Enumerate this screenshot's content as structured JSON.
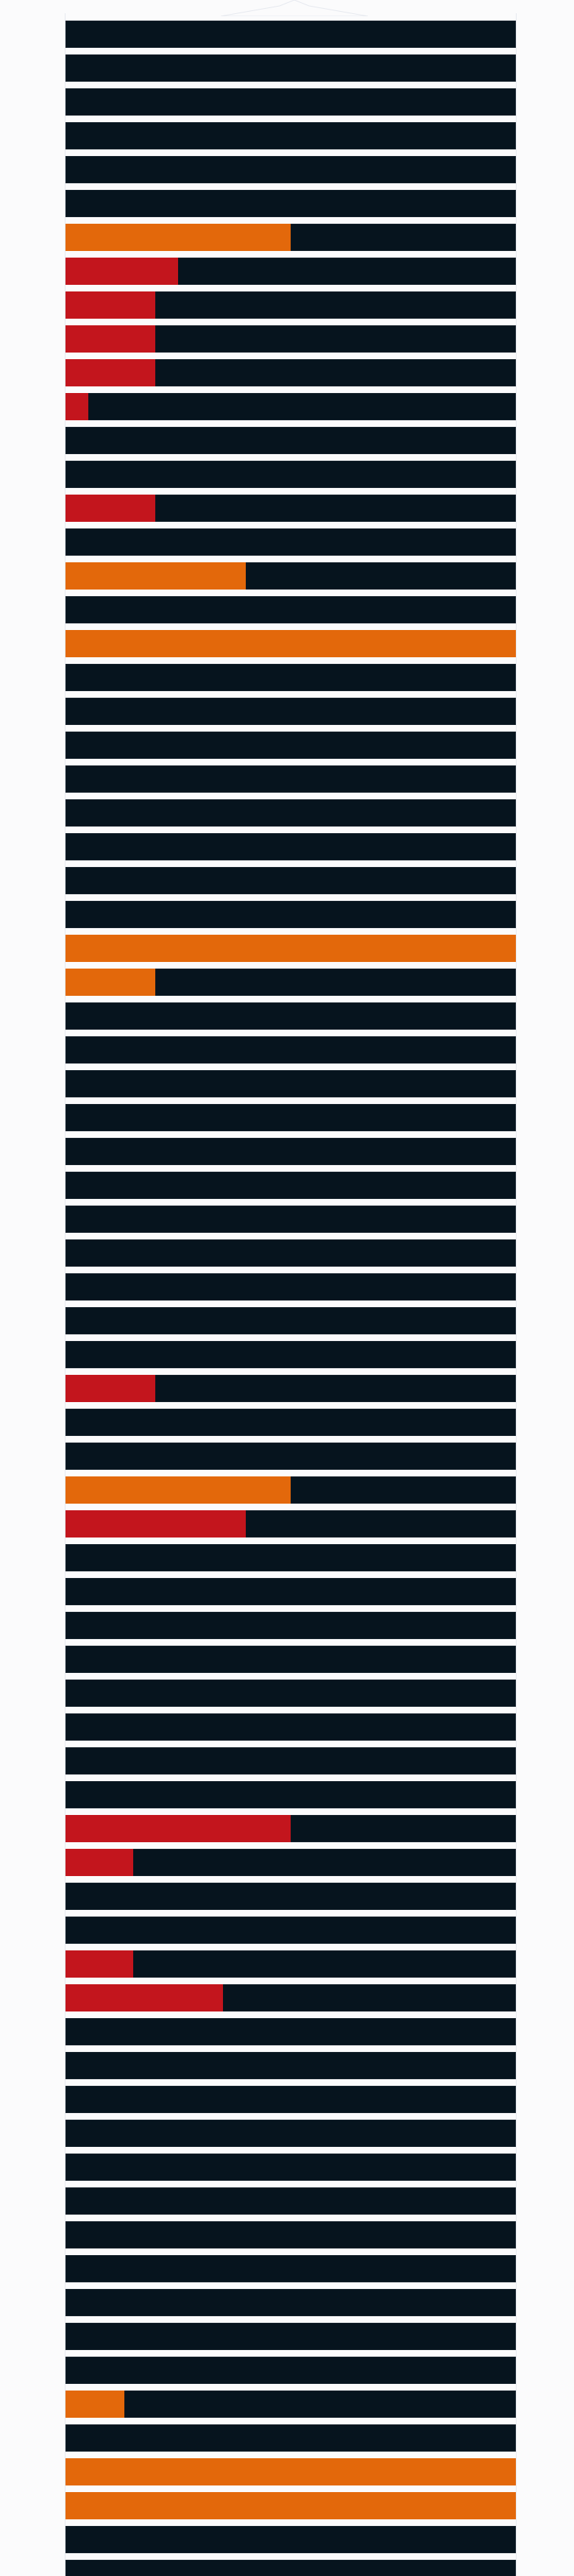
{
  "colors": {
    "background": "#fbfbfc",
    "bar_track": "#06141e",
    "orange": "#e3680b",
    "red": "#c3151d"
  },
  "icons": {
    "top_notch": "triangle-notch-icon"
  },
  "rows": [
    {
      "fill": 0,
      "color": "none"
    },
    {
      "fill": 0,
      "color": "none"
    },
    {
      "fill": 0,
      "color": "none"
    },
    {
      "fill": 0,
      "color": "none"
    },
    {
      "fill": 0,
      "color": "none"
    },
    {
      "fill": 0,
      "color": "none"
    },
    {
      "fill": 0.5,
      "color": "orange"
    },
    {
      "fill": 0.25,
      "color": "red"
    },
    {
      "fill": 0.2,
      "color": "red"
    },
    {
      "fill": 0.2,
      "color": "red"
    },
    {
      "fill": 0.2,
      "color": "red"
    },
    {
      "fill": 0.05,
      "color": "red"
    },
    {
      "fill": 0,
      "color": "none"
    },
    {
      "fill": 0,
      "color": "none"
    },
    {
      "fill": 0.2,
      "color": "red"
    },
    {
      "fill": 0,
      "color": "none"
    },
    {
      "fill": 0.4,
      "color": "orange"
    },
    {
      "fill": 0,
      "color": "none"
    },
    {
      "fill": 1.0,
      "color": "orange"
    },
    {
      "fill": 0,
      "color": "none"
    },
    {
      "fill": 0,
      "color": "none"
    },
    {
      "fill": 0,
      "color": "none"
    },
    {
      "fill": 0,
      "color": "none"
    },
    {
      "fill": 0,
      "color": "none"
    },
    {
      "fill": 0,
      "color": "none"
    },
    {
      "fill": 0,
      "color": "none"
    },
    {
      "fill": 0,
      "color": "none"
    },
    {
      "fill": 1.0,
      "color": "orange"
    },
    {
      "fill": 0.2,
      "color": "orange"
    },
    {
      "fill": 0,
      "color": "none"
    },
    {
      "fill": 0,
      "color": "none"
    },
    {
      "fill": 0,
      "color": "none"
    },
    {
      "fill": 0,
      "color": "none"
    },
    {
      "fill": 0,
      "color": "none"
    },
    {
      "fill": 0,
      "color": "none"
    },
    {
      "fill": 0,
      "color": "none"
    },
    {
      "fill": 0,
      "color": "none"
    },
    {
      "fill": 0,
      "color": "none"
    },
    {
      "fill": 0,
      "color": "none"
    },
    {
      "fill": 0,
      "color": "none"
    },
    {
      "fill": 0.2,
      "color": "red"
    },
    {
      "fill": 0,
      "color": "none"
    },
    {
      "fill": 0,
      "color": "none"
    },
    {
      "fill": 0.5,
      "color": "orange"
    },
    {
      "fill": 0.4,
      "color": "red"
    },
    {
      "fill": 0,
      "color": "none"
    },
    {
      "fill": 0,
      "color": "none"
    },
    {
      "fill": 0,
      "color": "none"
    },
    {
      "fill": 0,
      "color": "none"
    },
    {
      "fill": 0,
      "color": "none"
    },
    {
      "fill": 0,
      "color": "none"
    },
    {
      "fill": 0,
      "color": "none"
    },
    {
      "fill": 0,
      "color": "none"
    },
    {
      "fill": 0.5,
      "color": "red"
    },
    {
      "fill": 0.15,
      "color": "red"
    },
    {
      "fill": 0,
      "color": "none"
    },
    {
      "fill": 0,
      "color": "none"
    },
    {
      "fill": 0.15,
      "color": "red"
    },
    {
      "fill": 0.35,
      "color": "red"
    },
    {
      "fill": 0,
      "color": "none"
    },
    {
      "fill": 0,
      "color": "none"
    },
    {
      "fill": 0,
      "color": "none"
    },
    {
      "fill": 0,
      "color": "none"
    },
    {
      "fill": 0,
      "color": "none"
    },
    {
      "fill": 0,
      "color": "none"
    },
    {
      "fill": 0,
      "color": "none"
    },
    {
      "fill": 0,
      "color": "none"
    },
    {
      "fill": 0,
      "color": "none"
    },
    {
      "fill": 0,
      "color": "none"
    },
    {
      "fill": 0,
      "color": "none"
    },
    {
      "fill": 0.13,
      "color": "orange"
    },
    {
      "fill": 0,
      "color": "none"
    },
    {
      "fill": 1.0,
      "color": "orange"
    },
    {
      "fill": 1.0,
      "color": "orange"
    },
    {
      "fill": 0,
      "color": "none"
    },
    {
      "fill": 0,
      "color": "none"
    }
  ]
}
